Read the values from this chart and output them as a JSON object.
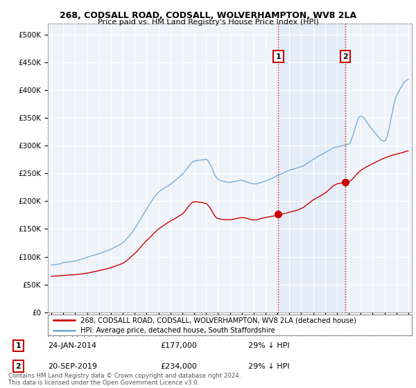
{
  "title": "268, CODSALL ROAD, CODSALL, WOLVERHAMPTON, WV8 2LA",
  "subtitle": "Price paid vs. HM Land Registry's House Price Index (HPI)",
  "ylabel_ticks": [
    "£0",
    "£50K",
    "£100K",
    "£150K",
    "£200K",
    "£250K",
    "£300K",
    "£350K",
    "£400K",
    "£450K",
    "£500K"
  ],
  "ytick_values": [
    0,
    50000,
    100000,
    150000,
    200000,
    250000,
    300000,
    350000,
    400000,
    450000,
    500000
  ],
  "ylim": [
    0,
    520000
  ],
  "xlim_start": 1994.7,
  "xlim_end": 2025.3,
  "hpi_color": "#7aadd4",
  "hpi_fill_color": "#dce9f5",
  "sale_color": "#cc0000",
  "marker1_date": 2014.07,
  "marker1_price": 177000,
  "marker2_date": 2019.72,
  "marker2_price": 234000,
  "vline_color": "#cc0000",
  "background_color": "#ffffff",
  "plot_bg_color": "#eef3fa",
  "legend_label_sale": "268, CODSALL ROAD, CODSALL, WOLVERHAMPTON, WV8 2LA (detached house)",
  "legend_label_hpi": "HPI: Average price, detached house, South Staffordshire",
  "note1_label": "1",
  "note1_date": "24-JAN-2014",
  "note1_price": "£177,000",
  "note1_pct": "29% ↓ HPI",
  "note2_label": "2",
  "note2_date": "20-SEP-2019",
  "note2_price": "£234,000",
  "note2_pct": "29% ↓ HPI",
  "footer": "Contains HM Land Registry data © Crown copyright and database right 2024.\nThis data is licensed under the Open Government Licence v3.0.",
  "xtick_years": [
    1995,
    1996,
    1997,
    1998,
    1999,
    2000,
    2001,
    2002,
    2003,
    2004,
    2005,
    2006,
    2007,
    2008,
    2009,
    2010,
    2011,
    2012,
    2013,
    2014,
    2015,
    2016,
    2017,
    2018,
    2019,
    2020,
    2021,
    2022,
    2023,
    2024,
    2025
  ],
  "hpi_anchors_x": [
    1995,
    1997,
    1999,
    2001,
    2002,
    2003,
    2004,
    2005,
    2006,
    2007,
    2008,
    2009,
    2010,
    2011,
    2012,
    2013,
    2014,
    2015,
    2016,
    2017,
    2018,
    2019,
    2020,
    2021,
    2022,
    2023,
    2024,
    2025
  ],
  "hpi_anchors_y": [
    85000,
    93000,
    105000,
    125000,
    150000,
    185000,
    215000,
    230000,
    248000,
    272000,
    275000,
    240000,
    235000,
    238000,
    232000,
    238000,
    248000,
    258000,
    265000,
    278000,
    290000,
    300000,
    305000,
    355000,
    330000,
    310000,
    390000,
    420000
  ],
  "sale_anchors_x": [
    1995,
    1997,
    1999,
    2001,
    2002,
    2003,
    2004,
    2005,
    2006,
    2007,
    2008,
    2009,
    2010,
    2011,
    2012,
    2013,
    2014,
    2015,
    2016,
    2017,
    2018,
    2019,
    2020,
    2021,
    2022,
    2023,
    2024,
    2025
  ],
  "sale_anchors_y": [
    65000,
    68000,
    75000,
    88000,
    105000,
    128000,
    150000,
    165000,
    178000,
    200000,
    197000,
    170000,
    168000,
    172000,
    168000,
    173000,
    177000,
    183000,
    190000,
    205000,
    218000,
    234000,
    238000,
    258000,
    270000,
    280000,
    287000,
    293000
  ]
}
